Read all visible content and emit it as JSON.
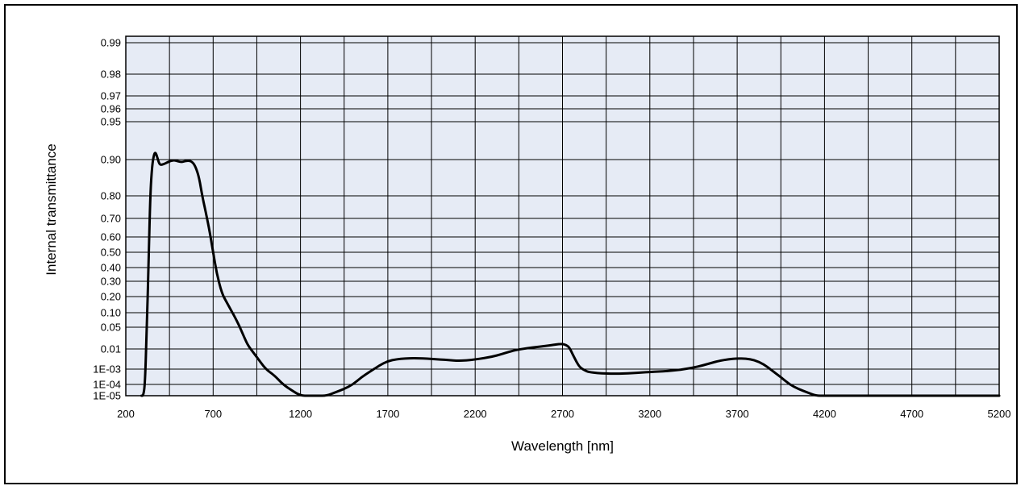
{
  "chart_data": {
    "type": "line",
    "title": "",
    "xlabel": "Wavelength [nm]",
    "ylabel": "Internal transmittance",
    "xlim": [
      200,
      5200
    ],
    "x_ticks": [
      200,
      700,
      1200,
      1700,
      2200,
      2700,
      3200,
      3700,
      4200,
      4700,
      5200
    ],
    "x_tick_labels": [
      "200",
      "700",
      "1200",
      "1700",
      "2200",
      "2700",
      "3200",
      "3700",
      "4200",
      "4700",
      "5200"
    ],
    "y_scale": "probability (non-linear)",
    "y_tick_labels": [
      "0.99",
      "0.98",
      "0.97",
      "0.96",
      "0.95",
      "0.90",
      "0.80",
      "0.70",
      "0.60",
      "0.50",
      "0.40",
      "0.30",
      "0.20",
      "0.10",
      "0.05",
      "0.01",
      "1E-03",
      "1E-04",
      "1E-05"
    ],
    "grid": true,
    "background_color": "#e6ebf5",
    "line_color": "#000000",
    "series": [
      {
        "x": [
          290,
          300,
          310,
          320,
          330,
          340,
          350,
          360,
          370,
          380,
          390,
          400,
          420,
          440,
          460,
          480,
          500,
          520,
          540,
          560,
          580,
          600,
          620,
          640,
          660,
          680,
          700,
          720,
          750,
          780,
          800,
          820,
          850,
          880,
          900,
          950,
          1000,
          1050,
          1100,
          1150,
          1200,
          1250,
          1300,
          1350,
          1400,
          1450,
          1500,
          1550,
          1600,
          1650,
          1700,
          1750,
          1800,
          1850,
          1900,
          1950,
          2000,
          2050,
          2100,
          2150,
          2200,
          2250,
          2300,
          2350,
          2400,
          2450,
          2500,
          2550,
          2600,
          2650,
          2680,
          2700,
          2720,
          2740,
          2760,
          2780,
          2800,
          2830,
          2850,
          2900,
          2950,
          3000,
          3050,
          3100,
          3150,
          3200,
          3250,
          3300,
          3350,
          3400,
          3450,
          3500,
          3550,
          3600,
          3650,
          3700,
          3750,
          3800,
          3850,
          3900,
          3950,
          4000,
          4050,
          4100,
          4150,
          4200,
          4300,
          4400,
          4500,
          4600,
          4700,
          4800,
          4900,
          5000,
          5100,
          5200
        ],
        "y": [
          1e-05,
          1e-05,
          0.0001,
          0.05,
          0.4,
          0.8,
          0.88,
          0.906,
          0.91,
          0.903,
          0.89,
          0.885,
          0.888,
          0.893,
          0.897,
          0.898,
          0.895,
          0.893,
          0.896,
          0.897,
          0.894,
          0.88,
          0.85,
          0.79,
          0.72,
          0.63,
          0.5,
          0.36,
          0.22,
          0.16,
          0.12,
          0.09,
          0.055,
          0.03,
          0.016,
          0.004,
          0.001,
          0.0004,
          0.0001,
          3e-05,
          1e-05,
          1e-05,
          1e-05,
          1e-05,
          2e-05,
          4e-05,
          0.0001,
          0.0003,
          0.0007,
          0.0015,
          0.0025,
          0.0031,
          0.0034,
          0.0035,
          0.0034,
          0.0032,
          0.003,
          0.0028,
          0.0026,
          0.0027,
          0.003,
          0.0035,
          0.0042,
          0.0055,
          0.0075,
          0.0095,
          0.0115,
          0.0135,
          0.0155,
          0.0175,
          0.019,
          0.0192,
          0.0175,
          0.0125,
          0.005,
          0.0023,
          0.0012,
          0.0008,
          0.00065,
          0.00055,
          0.00052,
          0.0005,
          0.00052,
          0.00055,
          0.0006,
          0.00065,
          0.0007,
          0.00075,
          0.00085,
          0.001,
          0.0012,
          0.0015,
          0.002,
          0.0026,
          0.0031,
          0.0034,
          0.0033,
          0.0028,
          0.0018,
          0.0008,
          0.0003,
          0.0001,
          4e-05,
          2e-05,
          1e-05,
          1e-05,
          1e-05,
          1e-05,
          1e-05,
          1e-05,
          1e-05,
          1e-05,
          1e-05,
          1e-05,
          1e-05,
          1e-05
        ]
      }
    ]
  }
}
